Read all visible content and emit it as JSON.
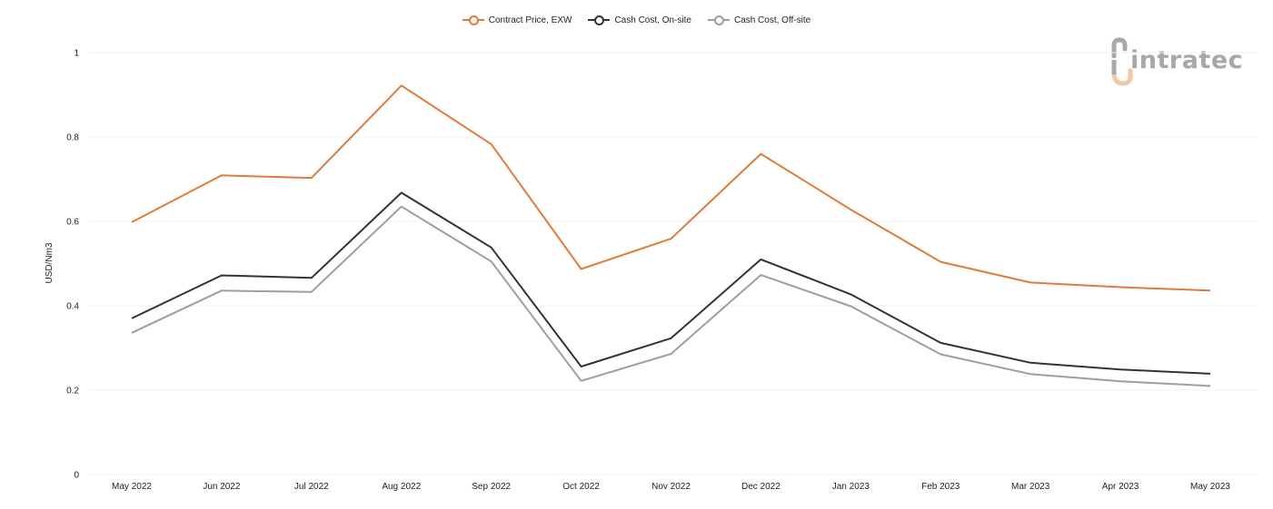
{
  "legend": [
    {
      "label": "Contract Price, EXW",
      "color": "#e07b39"
    },
    {
      "label": "Cash Cost, On-site",
      "color": "#333333"
    },
    {
      "label": "Cash Cost, Off-site",
      "color": "#9e9e9e"
    }
  ],
  "logo": {
    "text": "intratec",
    "icon": "intratec-logo-icon"
  },
  "chart_data": {
    "type": "line",
    "ylabel": "USD/Nm3",
    "xlabel": "",
    "ylim": [
      0,
      1
    ],
    "yticks": [
      0,
      0.2,
      0.4,
      0.6,
      0.8,
      1
    ],
    "ytick_labels": [
      "0",
      "0.2",
      "0.4",
      "0.6",
      "0.8",
      "1"
    ],
    "grid": true,
    "legend_position": "top-center",
    "categories": [
      "May 2022",
      "Jun 2022",
      "Jul 2022",
      "Aug 2022",
      "Sep 2022",
      "Oct 2022",
      "Nov 2022",
      "Dec 2022",
      "Jan 2023",
      "Feb 2023",
      "Mar 2023",
      "Apr 2023",
      "May 2023"
    ],
    "series": [
      {
        "name": "Contract Price, EXW",
        "color": "#e07b39",
        "values": [
          0.598,
          0.709,
          0.703,
          0.922,
          0.783,
          0.487,
          0.559,
          0.76,
          0.628,
          0.504,
          0.455,
          0.444,
          0.436
        ]
      },
      {
        "name": "Cash Cost, On-site",
        "color": "#333333",
        "values": [
          0.37,
          0.472,
          0.466,
          0.668,
          0.538,
          0.256,
          0.323,
          0.51,
          0.427,
          0.312,
          0.265,
          0.249,
          0.239
        ]
      },
      {
        "name": "Cash Cost, Off-site",
        "color": "#9e9e9e",
        "values": [
          0.336,
          0.436,
          0.433,
          0.635,
          0.505,
          0.222,
          0.286,
          0.473,
          0.399,
          0.285,
          0.238,
          0.221,
          0.21
        ]
      }
    ]
  }
}
